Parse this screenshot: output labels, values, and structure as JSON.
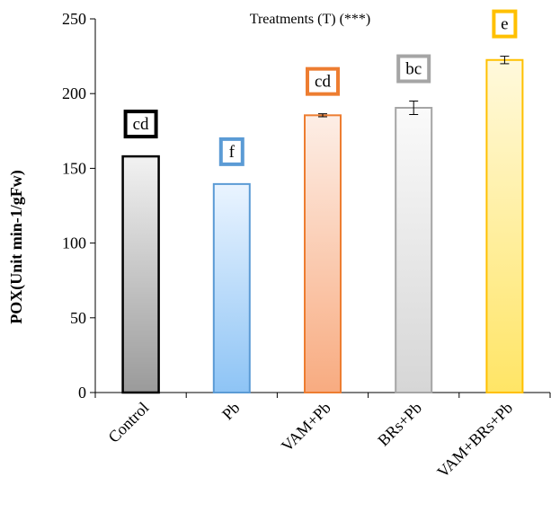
{
  "chart_data": {
    "type": "bar",
    "annotation": "Treatments (T) (***)",
    "ylabel": "POX(Unit min-1/gFw)",
    "xlabel": "",
    "ylim": [
      0,
      250
    ],
    "yticks": [
      0,
      50,
      100,
      150,
      200,
      250
    ],
    "categories": [
      "Control",
      "Pb",
      "VAM+Pb",
      "BRs+Pb",
      "VAM+BRs+Pb"
    ],
    "values": [
      158,
      139.5,
      185.5,
      190.5,
      222.5
    ],
    "errors": [
      0,
      0,
      1,
      4.5,
      2.5
    ],
    "significance_letters": [
      "cd",
      "f",
      "cd",
      "bc",
      "e"
    ],
    "bar_colors": [
      {
        "top": "#f2f2f2",
        "bottom": "#9a9a9a",
        "stroke": "#000000"
      },
      {
        "top": "#eaf4ff",
        "bottom": "#8ec4f5",
        "stroke": "#5b9bd5"
      },
      {
        "top": "#fdeee6",
        "bottom": "#f8ab80",
        "stroke": "#ed7d31"
      },
      {
        "top": "#fafafa",
        "bottom": "#d6d6d6",
        "stroke": "#a5a5a5"
      },
      {
        "top": "#fff9dc",
        "bottom": "#ffe566",
        "stroke": "#ffc000"
      }
    ],
    "letter_box_colors": [
      "#000000",
      "#5b9bd5",
      "#ed7d31",
      "#a5a5a5",
      "#ffc000"
    ],
    "grid": false
  }
}
